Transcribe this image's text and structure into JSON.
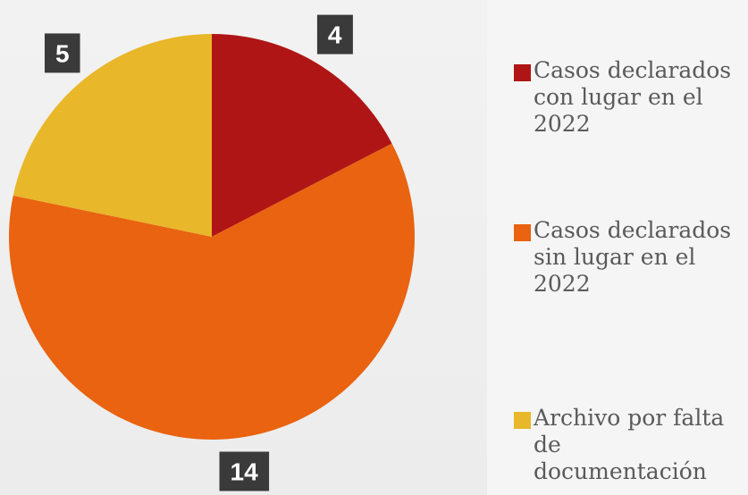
{
  "chart_data": {
    "type": "pie",
    "categories": [
      "Casos declarados con lugar en el 2022",
      "Casos declarados sin lugar en el 2022",
      "Archivo por falta de documentación"
    ],
    "values": [
      4,
      14,
      5
    ],
    "colors": [
      "#b01515",
      "#e96310",
      "#e8b72a"
    ],
    "legend": "right"
  }
}
